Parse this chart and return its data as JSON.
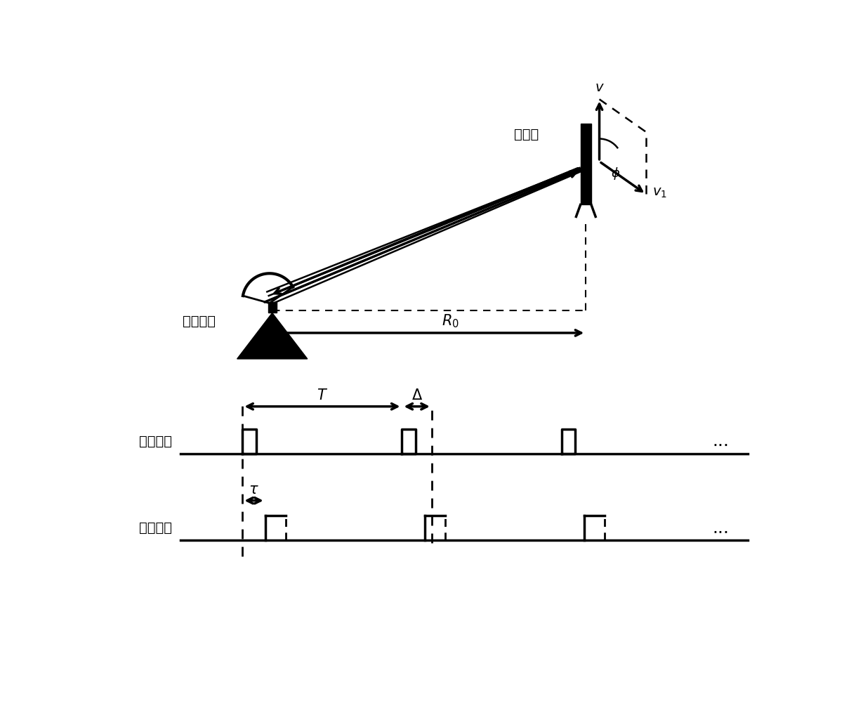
{
  "bg_color": "#ffffff",
  "text_color": "#000000",
  "label_radar": "地面雷达",
  "label_target": "动目标",
  "label_tx": "发射脉冲",
  "label_rx": "接收脉冲",
  "label_T": "T",
  "label_Delta": "Δ",
  "label_tau": "τ",
  "label_R0": "R",
  "label_R0_sub": "0",
  "label_v": "v",
  "label_v1": "v",
  "label_v1_sub": "1",
  "label_phi": "φ",
  "label_dots": "..."
}
